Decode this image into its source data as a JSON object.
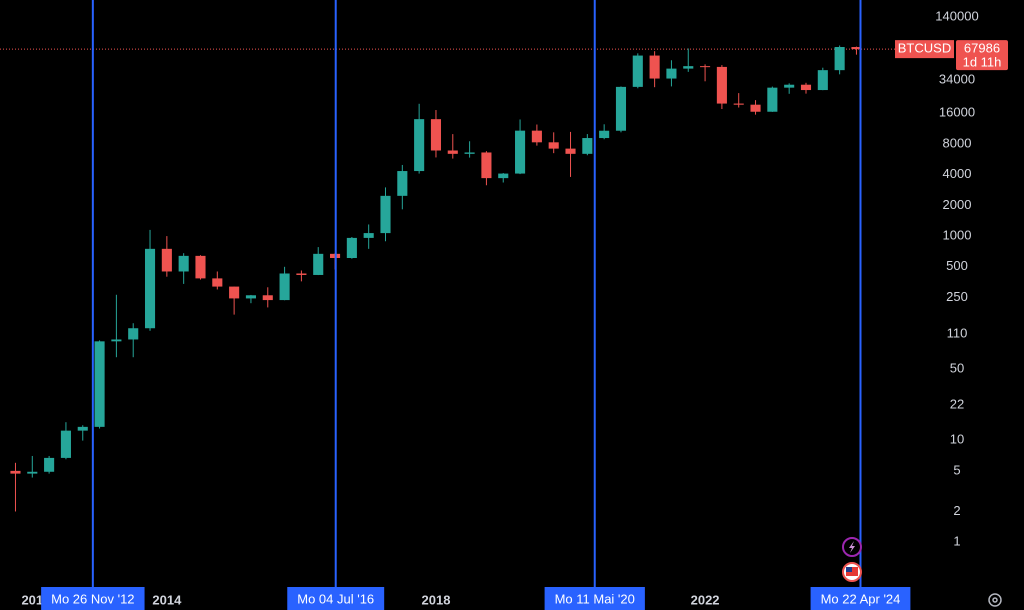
{
  "chart_data": {
    "type": "candlestick",
    "log_scale": true,
    "x": [
      2011.75,
      2012,
      2012.25,
      2012.5,
      2012.75,
      2013,
      2013.25,
      2013.5,
      2013.75,
      2014,
      2014.25,
      2014.5,
      2014.75,
      2015,
      2015.25,
      2015.5,
      2015.75,
      2016,
      2016.25,
      2016.5,
      2016.75,
      2017,
      2017.25,
      2017.5,
      2017.75,
      2018,
      2018.25,
      2018.5,
      2018.75,
      2019,
      2019.25,
      2019.5,
      2019.75,
      2020,
      2020.25,
      2020.5,
      2020.75,
      2021,
      2021.25,
      2021.5,
      2021.75,
      2022,
      2022.25,
      2022.5,
      2022.75,
      2023,
      2023.25,
      2023.5,
      2023.75,
      2024,
      2024.25
    ],
    "open": [
      5,
      4.7,
      4.9,
      6.7,
      12.4,
      13.5,
      93,
      97,
      125,
      750,
      450,
      640,
      385,
      320,
      245,
      263,
      236,
      430,
      416,
      670,
      610,
      960,
      1070,
      2480,
      4340,
      14000,
      6900,
      6400,
      6600,
      3700,
      4100,
      10800,
      8300,
      7200,
      6400,
      9140,
      10780,
      29000,
      58800,
      35000,
      43800,
      46300,
      45500,
      19900,
      19400,
      16550,
      28500,
      30450,
      27000,
      42300,
      71300
    ],
    "high": [
      6,
      7,
      7,
      15,
      14,
      95,
      266,
      140,
      1150,
      1000,
      680,
      650,
      450,
      320,
      265,
      315,
      500,
      460,
      780,
      680,
      980,
      1300,
      3000,
      4980,
      19800,
      17200,
      9990,
      8500,
      6800,
      4150,
      13900,
      12400,
      10400,
      10500,
      10000,
      12470,
      29300,
      61800,
      64900,
      52900,
      69000,
      48200,
      47400,
      25200,
      21500,
      29200,
      31400,
      31800,
      44700,
      73800,
      72000
    ],
    "low": [
      2,
      4.3,
      4.7,
      6.5,
      9.9,
      13,
      65,
      65,
      118,
      400,
      340,
      375,
      300,
      170,
      220,
      200,
      235,
      360,
      415,
      470,
      600,
      750,
      890,
      1830,
      4100,
      5900,
      5750,
      5880,
      3150,
      3350,
      4050,
      7700,
      6500,
      3800,
      6200,
      8900,
      10400,
      28100,
      28800,
      29300,
      40700,
      32900,
      17600,
      18200,
      15500,
      16500,
      24800,
      24900,
      26900,
      38500,
      60000
    ],
    "close": [
      4.7,
      4.9,
      6.7,
      12.4,
      13.5,
      93,
      97,
      125,
      750,
      450,
      640,
      385,
      320,
      245,
      263,
      236,
      430,
      416,
      670,
      610,
      960,
      1070,
      2480,
      4340,
      14000,
      6900,
      6400,
      6600,
      3700,
      4100,
      10800,
      8300,
      7200,
      6400,
      9140,
      10780,
      29000,
      58800,
      35000,
      43800,
      46300,
      45500,
      19900,
      19400,
      16550,
      28500,
      30450,
      27000,
      42300,
      71300,
      67986
    ],
    "up_color": "#26a69a",
    "down_color": "#ef5350",
    "xlim": [
      2011.52,
      2024.6
    ],
    "xticks": [
      {
        "value": 2012,
        "label": "201"
      },
      2014,
      2018,
      2022
    ],
    "ylim": [
      0.34,
      206000
    ],
    "yticks": [
      1,
      2,
      5,
      10,
      22,
      50,
      110,
      250,
      500,
      1000,
      2000,
      4000,
      8000,
      16000,
      34000,
      140000
    ],
    "markers": [
      {
        "x": 2012.9,
        "label": "Mo 26 Nov '12"
      },
      {
        "x": 2016.51,
        "label": "Mo 04 Jul '16"
      },
      {
        "x": 2020.36,
        "label": "Mo 11 Mai '20"
      },
      {
        "x": 2024.31,
        "label": "Mo 22 Apr '24"
      }
    ],
    "marker_color": "#2962ff",
    "last_price": {
      "symbol": "BTCUSD",
      "value": 67986,
      "countdown": "1d 11h"
    }
  }
}
